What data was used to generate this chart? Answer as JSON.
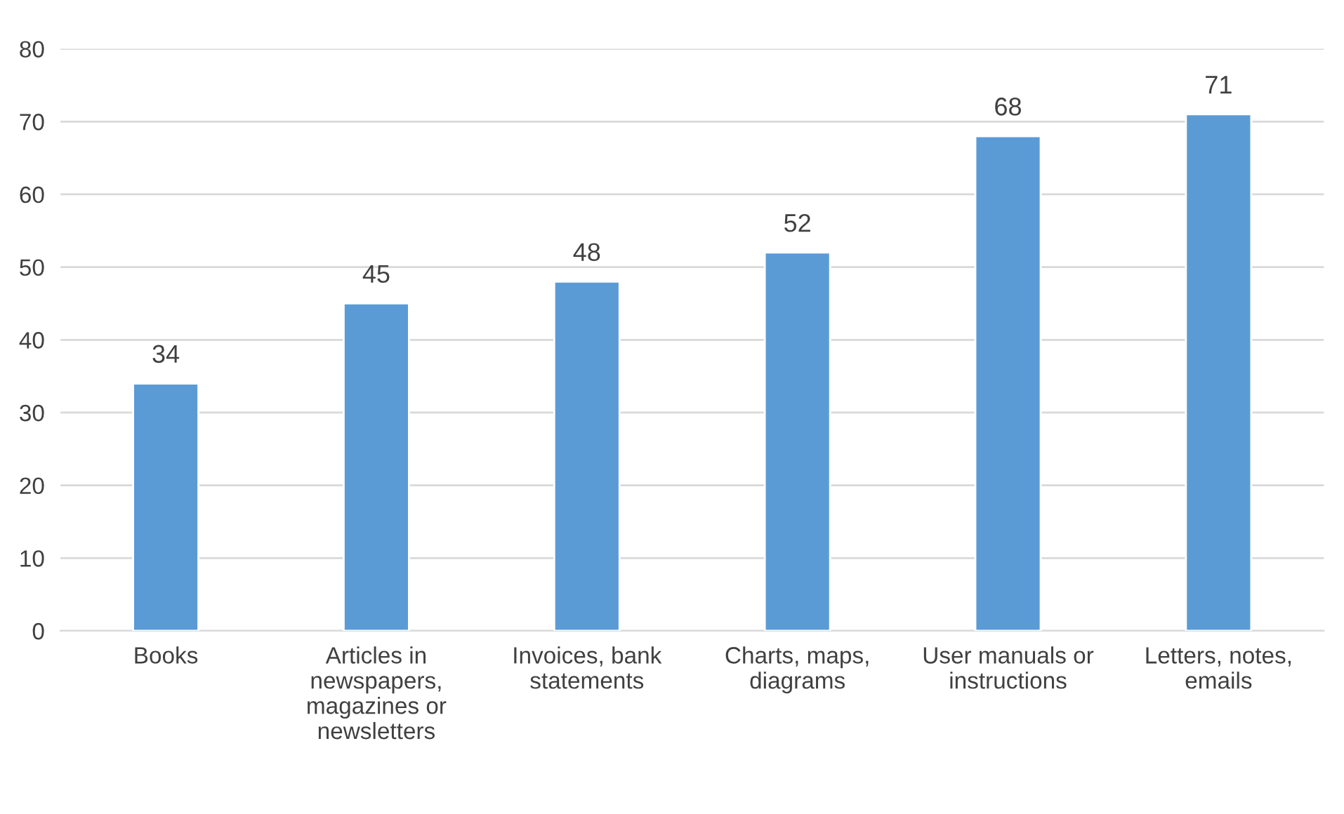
{
  "chart_data": {
    "type": "bar",
    "categories": [
      "Books",
      "Articles in\nnewspapers,\nmagazines or\nnewsletters",
      "Invoices, bank\nstatements",
      "Charts, maps,\ndiagrams",
      "User manuals or\ninstructions",
      "Letters, notes,\nemails"
    ],
    "values": [
      34,
      45,
      48,
      52,
      68,
      71
    ],
    "color": "#5b9bd5",
    "ylim": [
      0,
      80
    ],
    "yticks": [
      0,
      10,
      20,
      30,
      40,
      50,
      60,
      70,
      80
    ],
    "grid": "y",
    "data_labels": true
  }
}
